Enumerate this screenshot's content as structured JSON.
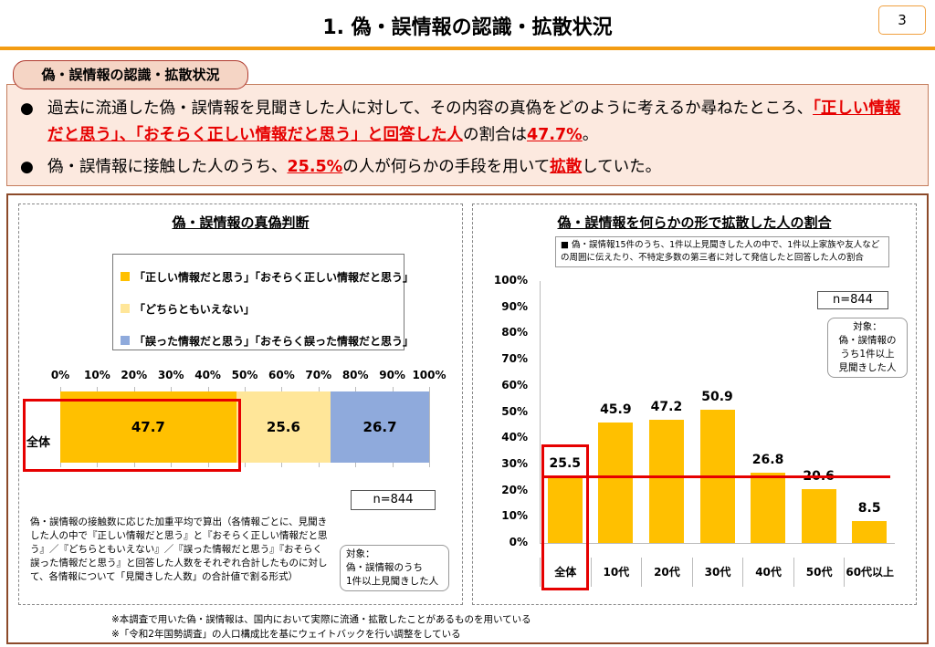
{
  "header": {
    "title": "1. 偽・誤情報の認識・拡散状況",
    "page_number": "3"
  },
  "summary": {
    "tag": "偽・誤情報の認識・拡散状況",
    "bullet1": {
      "text1": "過去に流通した偽・誤情報を見聞きした人に対して、その内容の真偽をどのように考えるか尋ねたところ、",
      "red1": "「正しい情報だと思う」、「おそらく正しい情報だと思う」と回答した人",
      "text2": "の割合は",
      "red2": "47.7%",
      "text3": "。"
    },
    "bullet2": {
      "text1": "偽・誤情報に接触した人のうち、",
      "red1": "25.5%",
      "text2": "の人が何らかの手段を用いて",
      "red2": "拡散",
      "text3": "していた。"
    }
  },
  "left_panel": {
    "title": "偽・誤情報の真偽判断",
    "legend": [
      {
        "label": "「正しい情報だと思う」「おそらく正しい情報だと思う」",
        "color": "#ffc000"
      },
      {
        "label": "「どちらともいえない」",
        "color": "#ffe699"
      },
      {
        "label": "「誤った情報だと思う」「おそらく誤った情報だと思う」",
        "color": "#8faadc"
      }
    ],
    "row_label": "全体",
    "n_label": "n=844",
    "note": "偽・誤情報の接触数に応じた加重平均で算出（各情報ごとに、見聞きした人の中で『正しい情報だと思う』と『おそらく正しい情報だと思う』／『どちらともいえない』／『誤った情報だと思う』『おそらく誤った情報だと思う』と回答した人数をそれぞれ合計したものに対して、各情報について「見聞きした人数」の合計値で割る形式）",
    "target": [
      "対象：",
      "偽・誤情報のうち",
      "1件以上見聞きした人"
    ]
  },
  "right_panel": {
    "title": "偽・誤情報を何らかの形で拡散した人の割合",
    "description": "■ 偽・誤情報15件のうち、1件以上見聞きした人の中で、1件以上家族や友人などの周囲に伝えたり、不特定多数の第三者に対して発信したと回答した人の割合",
    "n_label": "n=844",
    "target": [
      "対象：",
      "偽・誤情報の",
      "うち1件以上",
      "見聞きした人"
    ]
  },
  "footnotes": [
    "※本調査で用いた偽・誤情報は、国内において実際に流通・拡散したことがあるものを用いている",
    "※「令和2年国勢調査」の人口構成比を基にウェイトバックを行い調整をしている"
  ],
  "chart_data": [
    {
      "type": "bar",
      "orientation": "horizontal-stacked",
      "title": "偽・誤情報の真偽判断",
      "categories": [
        "全体"
      ],
      "series": [
        {
          "name": "「正しい情報だと思う」「おそらく正しい情報だと思う」",
          "values": [
            47.7
          ],
          "color": "#ffc000"
        },
        {
          "name": "「どちらともいえない」",
          "values": [
            25.6
          ],
          "color": "#ffe699"
        },
        {
          "name": "「誤った情報だと思う」「おそらく誤った情報だと思う」",
          "values": [
            26.7
          ],
          "color": "#8faadc"
        }
      ],
      "xlim": [
        0,
        100
      ],
      "xticks": [
        "0%",
        "10%",
        "20%",
        "30%",
        "40%",
        "50%",
        "60%",
        "70%",
        "80%",
        "90%",
        "100%"
      ]
    },
    {
      "type": "bar",
      "title": "偽・誤情報を何らかの形で拡散した人の割合",
      "categories": [
        "全体",
        "10代",
        "20代",
        "30代",
        "40代",
        "50代",
        "60代以上"
      ],
      "values": [
        25.5,
        45.9,
        47.2,
        50.9,
        26.8,
        20.6,
        8.5
      ],
      "value_labels": [
        "25.5",
        "45.9",
        "47.2",
        "50.9",
        "26.8",
        "20.6",
        "8.5"
      ],
      "ylim": [
        0,
        100
      ],
      "yticks": [
        "0%",
        "10%",
        "20%",
        "30%",
        "40%",
        "50%",
        "60%",
        "70%",
        "80%",
        "90%",
        "100%"
      ],
      "reference_line": 25.5,
      "color": "#ffc000"
    }
  ]
}
